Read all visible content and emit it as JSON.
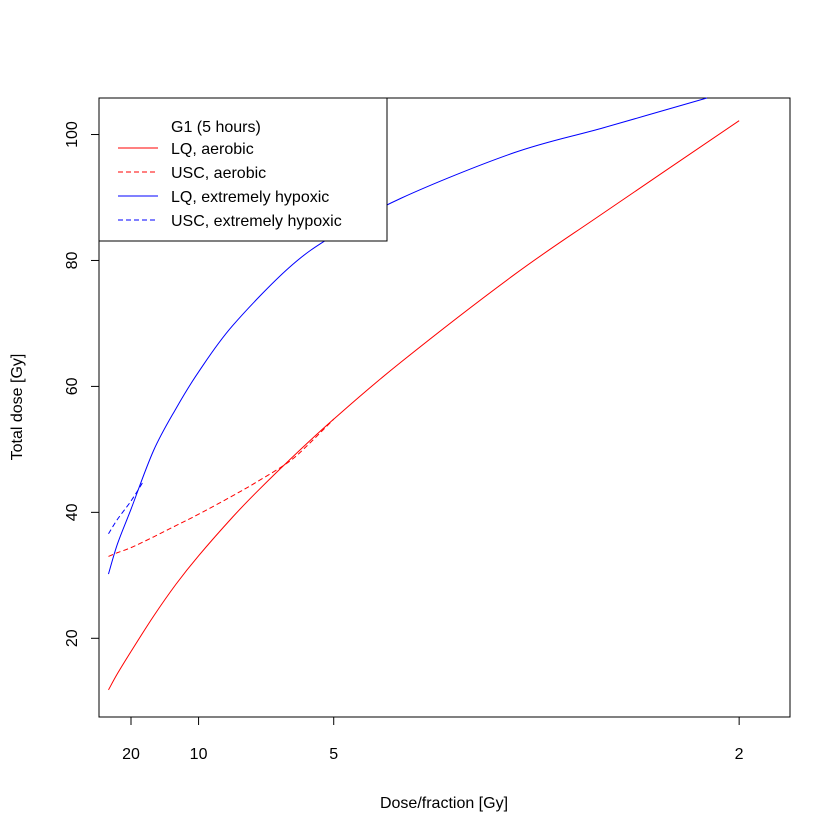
{
  "chart_data": {
    "type": "line",
    "title": "",
    "xlabel": "Dose/fraction [Gy]",
    "ylabel": "Total dose [Gy]",
    "x_axis": {
      "reversed": true,
      "scale": "reciprocal",
      "ticks": [
        20,
        10,
        5,
        2
      ],
      "tick_labels": [
        "20",
        "10",
        "5",
        "2"
      ],
      "lim": [
        38,
        1.86
      ]
    },
    "y_axis": {
      "scale": "linear",
      "ticks": [
        20,
        40,
        60,
        80,
        100
      ],
      "tick_labels": [
        "20",
        "40",
        "60",
        "80",
        "100"
      ],
      "lim": [
        7.5,
        105.8
      ]
    },
    "grid": false,
    "legend": {
      "position": "top-left",
      "title": "G1 (5 hours)",
      "entries": [
        {
          "label": "LQ, aerobic",
          "color": "#ff0000",
          "dash": "solid"
        },
        {
          "label": "USC, aerobic",
          "color": "#ff0000",
          "dash": "dashed"
        },
        {
          "label": "LQ, extremely hypoxic",
          "color": "#0000ff",
          "dash": "solid"
        },
        {
          "label": "USC, extremely hypoxic",
          "color": "#0000ff",
          "dash": "dashed"
        }
      ]
    },
    "series": [
      {
        "name": "LQ, aerobic",
        "color": "#ff0000",
        "dash": "solid",
        "x": [
          30,
          25,
          20,
          15,
          12,
          10,
          8,
          7,
          6,
          5,
          4,
          3,
          2.5,
          2
        ],
        "y": [
          11.8,
          14.4,
          17.9,
          23.5,
          28.6,
          33.1,
          39.2,
          43.2,
          48.2,
          54.8,
          63.9,
          77.7,
          87.6,
          102.2
        ]
      },
      {
        "name": "USC, aerobic",
        "color": "#ff0000",
        "dash": "dashed",
        "x": [
          30,
          25,
          20,
          15,
          12,
          10,
          8,
          7,
          6,
          5.5,
          5
        ],
        "y": [
          33.0,
          33.6,
          34.4,
          36.1,
          37.9,
          39.7,
          42.6,
          44.8,
          48.0,
          50.9,
          54.8
        ]
      },
      {
        "name": "LQ, extremely hypoxic",
        "color": "#0000ff",
        "dash": "solid",
        "x": [
          30,
          25,
          20,
          15,
          12,
          10,
          8,
          6,
          5,
          4,
          3,
          2.5,
          2.1
        ],
        "y": [
          30.2,
          35.0,
          40.5,
          49.8,
          56.5,
          62.3,
          69.6,
          78.8,
          84.0,
          89.9,
          97.1,
          101.1,
          105.8
        ]
      },
      {
        "name": "USC, extremely hypoxic",
        "color": "#0000ff",
        "dash": "dashed",
        "x": [
          30,
          25,
          20,
          17
        ],
        "y": [
          36.6,
          38.9,
          41.8,
          44.8
        ]
      }
    ]
  }
}
